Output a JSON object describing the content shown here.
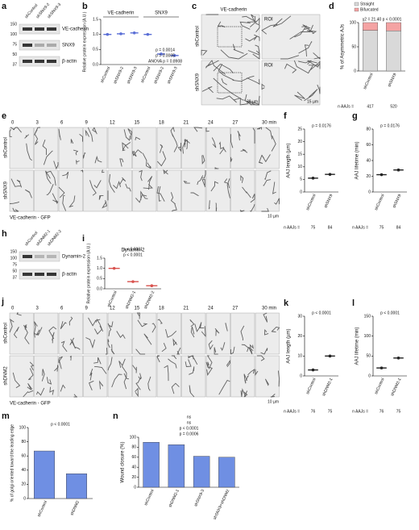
{
  "panels": {
    "a": {
      "label": "a",
      "lanes": [
        "shControl",
        "shSNX9-2",
        "shSNX9-3"
      ],
      "bands": [
        "VE-cadherin",
        "SNX9",
        "β-actin"
      ],
      "markers": [
        150,
        100,
        75,
        50,
        37
      ]
    },
    "c": {
      "label": "c",
      "title": "VE-cadherin",
      "rows": [
        "shControl",
        "shSNX9"
      ],
      "roi": [
        "ROI",
        "ROI"
      ],
      "scale_bars": [
        "30 µm",
        "15 µm"
      ]
    },
    "e": {
      "label": "e",
      "times": [
        "0",
        "3",
        "6",
        "9",
        "12",
        "15",
        "18",
        "21",
        "24",
        "27",
        "30 min"
      ],
      "rows": [
        "shControl",
        "shSNX9"
      ],
      "caption": "VE-cadherin - GFP",
      "scale_bar": "10 µm"
    },
    "h": {
      "label": "h",
      "lanes": [
        "shControl",
        "shDNM2-1",
        "shDNM2-2"
      ],
      "bands": [
        "Dynamin-2",
        "β-actin"
      ],
      "markers": [
        150,
        100,
        75,
        50,
        37
      ]
    },
    "j": {
      "label": "j",
      "times": [
        "0",
        "3",
        "6",
        "9",
        "12",
        "15",
        "18",
        "21",
        "24",
        "27",
        "30 min"
      ],
      "rows": [
        "shControl",
        "shDNM2"
      ],
      "caption": "VE-cadherin - GFP",
      "scale_bar": "10 µm"
    }
  },
  "chart_data": [
    {
      "label": "b",
      "type": "dot",
      "ylabel": "Relative protein expression (A.U.)",
      "groups": [
        "VE-cadherin",
        "SNX9"
      ],
      "categories": [
        "shControl",
        "shSNX9-2",
        "shSNX9-3",
        "shControl",
        "shSNX9-2",
        "shSNX9-3"
      ],
      "values": [
        1.0,
        1.02,
        1.05,
        1.0,
        0.35,
        0.3
      ],
      "color": "#5b6fd6",
      "ylim": [
        0,
        1.5
      ],
      "yticks": [
        {
          "value": 0,
          "label": "0.0"
        },
        0.5,
        {
          "value": 1,
          "label": "1.0"
        },
        1.5
      ],
      "annotations": [
        "ANOVA p = 0.8908",
        "p = 0.0005",
        "p = 0.0014"
      ]
    },
    {
      "label": "d",
      "type": "stacked_bar",
      "ylabel": "% of Asymmetric AJs",
      "categories": [
        "shControl",
        "shSNX9"
      ],
      "series": [
        {
          "name": "Straight",
          "color": "#d9d9d9",
          "values": [
            84,
            83
          ]
        },
        {
          "name": "Bifurcated",
          "color": "#f4a3a3",
          "values": [
            16,
            17
          ]
        }
      ],
      "ylim": [
        0,
        100
      ],
      "yticks": [
        0,
        50,
        100
      ],
      "annotations": [
        "χ2 = 21.40  p < 0.0001"
      ],
      "n_label": "n AAJs =",
      "n": [
        417,
        520
      ]
    },
    {
      "label": "f",
      "type": "dot",
      "ylabel": "AAJ length (µm)",
      "categories": [
        "shControl",
        "shSNX9"
      ],
      "values": [
        5.5,
        7
      ],
      "color": "#222222",
      "ylim": [
        0,
        25
      ],
      "yticks": [
        0,
        5,
        10,
        15,
        20,
        25
      ],
      "annotations": [
        "p = 0.0176"
      ],
      "n_label": "n AAJs =",
      "n": [
        75,
        84
      ]
    },
    {
      "label": "g",
      "type": "dot",
      "ylabel": "AAJ lifetime (min)",
      "categories": [
        "shControl",
        "shSNX9"
      ],
      "values": [
        22,
        28
      ],
      "color": "#222222",
      "ylim": [
        0,
        80
      ],
      "yticks": [
        0,
        20,
        40,
        60,
        80
      ],
      "annotations": [
        "p = 0.0176"
      ],
      "n_label": "n AAJs =",
      "n": [
        75,
        84
      ]
    },
    {
      "label": "i",
      "type": "dot",
      "title": "Dynamin-2",
      "ylabel": "Relative protein expression (A.U.)",
      "categories": [
        "shControl",
        "shDNM2-1",
        "shDNM2-2"
      ],
      "values": [
        1.0,
        0.35,
        0.15
      ],
      "color": "#d9534f",
      "ylim": [
        0,
        1.5
      ],
      "yticks": [
        {
          "value": 0,
          "label": "0.0"
        },
        0.5,
        {
          "value": 1,
          "label": "1.0"
        },
        1.5
      ],
      "annotations": [
        "p < 0.0001",
        "p < 0.0001"
      ]
    },
    {
      "label": "k",
      "type": "dot",
      "ylabel": "AAJ length (µm)",
      "categories": [
        "shControl",
        "shDNM2-1"
      ],
      "values": [
        3,
        10
      ],
      "color": "#222222",
      "ylim": [
        0,
        30
      ],
      "yticks": [
        0,
        10,
        20,
        30
      ],
      "annotations": [
        "p < 0.0001"
      ],
      "n_label": "n AAJs =",
      "n": [
        76,
        75
      ]
    },
    {
      "label": "l",
      "type": "dot",
      "ylabel": "AAJ lifetime (min)",
      "categories": [
        "shControl",
        "shDNM2-1"
      ],
      "values": [
        20,
        45
      ],
      "color": "#222222",
      "ylim": [
        0,
        150
      ],
      "yticks": [
        0,
        50,
        100,
        150
      ],
      "annotations": [
        "p < 0.0001"
      ],
      "n_label": "n AAJs =",
      "n": [
        76,
        75
      ]
    },
    {
      "label": "m",
      "type": "bar",
      "ylabel": "% of golgi oriented toward the leading edge",
      "categories": [
        "shControl",
        "shDNM2"
      ],
      "values": [
        67,
        35
      ],
      "color": "#6f8fe3",
      "ylim": [
        0,
        100
      ],
      "yticks": [
        0,
        20,
        40,
        60,
        80,
        100
      ],
      "annotations": [
        "p < 0.0001"
      ]
    },
    {
      "label": "n",
      "type": "bar",
      "ylabel": "Wound closure (%)",
      "categories": [
        "shControl",
        "shDNM2-1",
        "shSNX9-3",
        "shSNX9+shDNM2"
      ],
      "values": [
        90,
        85,
        62,
        60
      ],
      "color": "#6f8fe3",
      "ylim": [
        0,
        100
      ],
      "yticks": [
        0,
        20,
        40,
        60,
        80,
        100
      ],
      "annotations": [
        "p = 0.0006",
        "p < 0.0001",
        "ns",
        "ns"
      ]
    }
  ]
}
